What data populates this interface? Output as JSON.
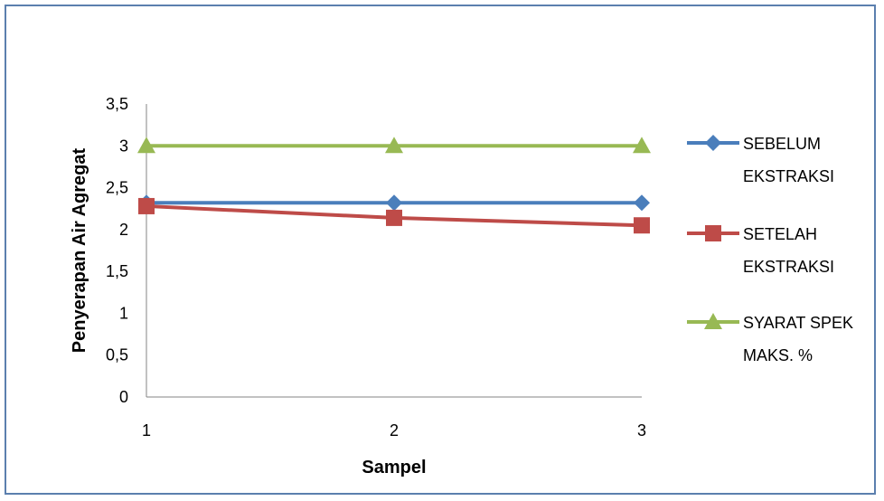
{
  "chart_data": {
    "type": "line",
    "categories": [
      "1",
      "2",
      "3"
    ],
    "xlabel": "Sampel",
    "ylabel": "Penyerapan Air Agregat",
    "ylim": [
      0,
      3.5
    ],
    "yticks": [
      "0",
      "0,5",
      "1",
      "1,5",
      "2",
      "2,5",
      "3",
      "3,5"
    ],
    "yticks_values": [
      0,
      0.5,
      1,
      1.5,
      2,
      2.5,
      3,
      3.5
    ],
    "grid": false,
    "legend_position": "right",
    "series": [
      {
        "name_lines": [
          "SEBELUM",
          "EKSTRAKSI"
        ],
        "values": [
          2.32,
          2.32,
          2.32
        ],
        "color": "#4a7ebb",
        "marker": "diamond"
      },
      {
        "name_lines": [
          "SETELAH",
          "EKSTRAKSI"
        ],
        "values": [
          2.28,
          2.14,
          2.05
        ],
        "color": "#be4b48",
        "marker": "square"
      },
      {
        "name_lines": [
          "SYARAT SPEK",
          "MAKS. %"
        ],
        "values": [
          3,
          3,
          3
        ],
        "color": "#98b954",
        "marker": "triangle"
      }
    ]
  }
}
